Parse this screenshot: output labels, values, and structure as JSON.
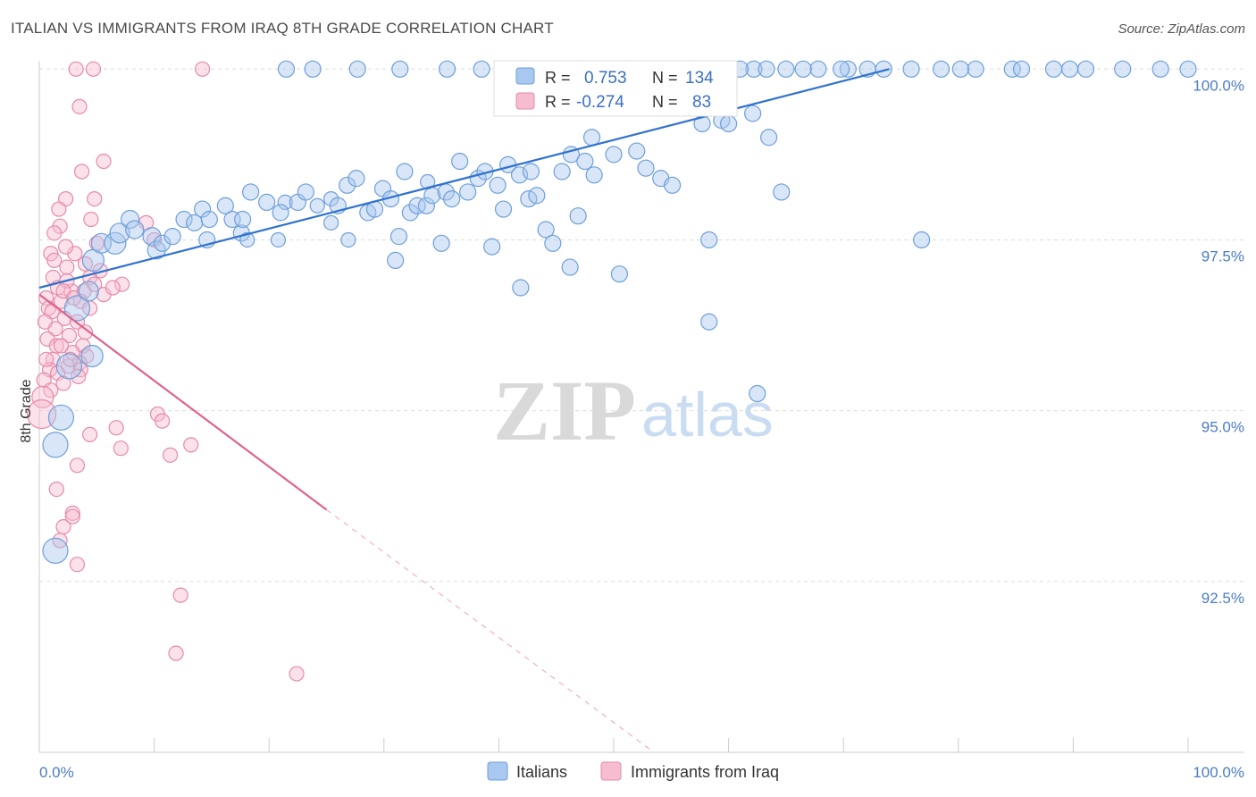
{
  "header": {
    "title": "ITALIAN VS IMMIGRANTS FROM IRAQ 8TH GRADE CORRELATION CHART",
    "source": "Source: ZipAtlas.com"
  },
  "watermark": {
    "zip": "ZIP",
    "atlas": "atlas"
  },
  "colors": {
    "blue_fill": "#a9c8ef",
    "blue_stroke": "#6f9fd9",
    "blue_line": "#2f72cf",
    "pink_fill": "#f6bcd0",
    "pink_stroke": "#e88aa8",
    "pink_line": "#e0628f",
    "grid": "#dcdcdc",
    "axis_label": "#4a7cc7"
  },
  "stats": {
    "italians": {
      "r_label": "R =",
      "r_value": "0.753",
      "n_label": "N =",
      "n_value": "134"
    },
    "iraq": {
      "r_label": "R =",
      "r_value": "-0.274",
      "n_label": "N =",
      "n_value": "83"
    }
  },
  "legend": {
    "italians": "Italians",
    "iraq": "Immigrants from Iraq"
  },
  "chart_data": {
    "type": "scatter",
    "title": "ITALIAN VS IMMIGRANTS FROM IRAQ 8TH GRADE CORRELATION CHART",
    "xlabel": "",
    "ylabel": "8th Grade",
    "xlim": [
      0,
      100
    ],
    "ylim": [
      90.0,
      100.2
    ],
    "x_tick_labels": {
      "left": "0.0%",
      "right": "100.0%"
    },
    "y_ticks": [
      {
        "value": 100.0,
        "label": "100.0%"
      },
      {
        "value": 97.5,
        "label": "97.5%"
      },
      {
        "value": 95.0,
        "label": "95.0%"
      },
      {
        "value": 92.5,
        "label": "92.5%"
      }
    ],
    "grid": true,
    "series": [
      {
        "name": "Italians",
        "r": 0.753,
        "n": 134,
        "trend": {
          "x": [
            0,
            74
          ],
          "y": [
            96.8,
            100.0
          ],
          "style": "solid"
        },
        "points": [
          [
            1.4,
            92.95,
            14
          ],
          [
            1.4,
            94.5,
            14
          ],
          [
            1.9,
            94.9,
            14
          ],
          [
            2.6,
            95.65,
            14
          ],
          [
            3.3,
            96.5,
            14
          ],
          [
            4.6,
            95.8,
            12
          ],
          [
            4.3,
            96.75,
            11
          ],
          [
            4.7,
            97.2,
            12
          ],
          [
            5.4,
            97.45,
            11
          ],
          [
            6.6,
            97.45,
            12
          ],
          [
            7.0,
            97.6,
            11
          ],
          [
            7.9,
            97.8,
            10
          ],
          [
            8.3,
            97.65,
            10
          ],
          [
            9.8,
            97.55,
            10
          ],
          [
            10.2,
            97.35,
            10
          ],
          [
            10.7,
            97.45,
            9
          ],
          [
            11.6,
            97.55,
            9
          ],
          [
            12.6,
            97.8,
            9
          ],
          [
            13.5,
            97.75,
            9
          ],
          [
            14.2,
            97.95,
            9
          ],
          [
            14.8,
            97.8,
            9
          ],
          [
            16.2,
            98.0,
            9
          ],
          [
            16.8,
            97.8,
            9
          ],
          [
            14.6,
            97.5,
            9
          ],
          [
            17.6,
            97.6,
            9
          ],
          [
            17.7,
            97.8,
            9
          ],
          [
            18.1,
            97.5,
            8
          ],
          [
            18.4,
            98.2,
            9
          ],
          [
            19.8,
            98.05,
            9
          ],
          [
            21.4,
            98.05,
            8
          ],
          [
            21.0,
            97.9,
            9
          ],
          [
            22.5,
            98.05,
            9
          ],
          [
            23.2,
            98.2,
            9
          ],
          [
            24.2,
            98.0,
            8
          ],
          [
            25.4,
            98.1,
            8
          ],
          [
            26.0,
            98.0,
            9
          ],
          [
            26.8,
            98.3,
            9
          ],
          [
            27.6,
            98.4,
            9
          ],
          [
            28.6,
            97.9,
            9
          ],
          [
            29.2,
            97.95,
            9
          ],
          [
            29.9,
            98.25,
            9
          ],
          [
            30.6,
            98.1,
            9
          ],
          [
            31.8,
            98.5,
            9
          ],
          [
            31.3,
            97.55,
            9
          ],
          [
            32.3,
            97.9,
            9
          ],
          [
            32.9,
            98.0,
            9
          ],
          [
            33.7,
            98.0,
            9
          ],
          [
            34.2,
            98.15,
            9
          ],
          [
            35.4,
            98.2,
            9
          ],
          [
            35.9,
            98.1,
            9
          ],
          [
            36.6,
            98.65,
            9
          ],
          [
            37.3,
            98.2,
            9
          ],
          [
            38.2,
            98.4,
            9
          ],
          [
            38.8,
            98.5,
            9
          ],
          [
            39.9,
            98.3,
            9
          ],
          [
            40.4,
            97.95,
            9
          ],
          [
            40.8,
            98.6,
            9
          ],
          [
            41.8,
            98.45,
            9
          ],
          [
            42.6,
            98.1,
            9
          ],
          [
            43.3,
            98.15,
            9
          ],
          [
            42.8,
            98.5,
            9
          ],
          [
            44.1,
            97.65,
            9
          ],
          [
            44.7,
            97.45,
            9
          ],
          [
            45.5,
            98.5,
            9
          ],
          [
            46.3,
            98.75,
            9
          ],
          [
            46.9,
            97.85,
            9
          ],
          [
            47.5,
            98.65,
            9
          ],
          [
            48.3,
            98.45,
            9
          ],
          [
            48.1,
            99.0,
            9
          ],
          [
            50.0,
            98.75,
            9
          ],
          [
            50.5,
            97.0,
            9
          ],
          [
            52.0,
            98.8,
            9
          ],
          [
            52.8,
            98.55,
            9
          ],
          [
            54.1,
            98.4,
            9
          ],
          [
            55.1,
            98.3,
            9
          ],
          [
            57.7,
            99.2,
            9
          ],
          [
            58.3,
            97.5,
            9
          ],
          [
            59.4,
            99.25,
            9
          ],
          [
            62.1,
            99.35,
            9
          ],
          [
            63.5,
            99.0,
            9
          ],
          [
            64.6,
            98.2,
            9
          ],
          [
            31.0,
            97.2,
            9
          ],
          [
            35.0,
            97.45,
            9
          ],
          [
            39.4,
            97.4,
            9
          ],
          [
            41.9,
            96.8,
            9
          ],
          [
            46.2,
            97.1,
            9
          ],
          [
            58.3,
            96.3,
            9
          ],
          [
            62.5,
            95.25,
            9
          ],
          [
            76.8,
            97.5,
            9
          ],
          [
            20.8,
            97.5,
            8
          ],
          [
            25.4,
            97.75,
            8
          ],
          [
            26.9,
            97.5,
            8
          ],
          [
            33.8,
            98.35,
            8
          ],
          [
            60.0,
            99.2,
            9
          ],
          [
            21.5,
            100.0,
            9
          ],
          [
            23.8,
            100.0,
            9
          ],
          [
            27.7,
            100.0,
            9
          ],
          [
            31.4,
            100.0,
            9
          ],
          [
            35.5,
            100.0,
            9
          ],
          [
            38.5,
            100.0,
            9
          ],
          [
            41.2,
            100.0,
            9
          ],
          [
            43.6,
            100.0,
            9
          ],
          [
            46.5,
            100.0,
            9
          ],
          [
            50.3,
            100.0,
            9
          ],
          [
            53.6,
            100.0,
            9
          ],
          [
            56.2,
            100.0,
            9
          ],
          [
            59.0,
            100.0,
            9
          ],
          [
            62.2,
            100.0,
            9
          ],
          [
            65.0,
            100.0,
            9
          ],
          [
            67.8,
            100.0,
            9
          ],
          [
            70.4,
            100.0,
            9
          ],
          [
            72.1,
            100.0,
            9
          ],
          [
            75.9,
            100.0,
            9
          ],
          [
            78.5,
            100.0,
            9
          ],
          [
            81.5,
            100.0,
            9
          ],
          [
            84.7,
            100.0,
            9
          ],
          [
            88.3,
            100.0,
            9
          ],
          [
            91.1,
            100.0,
            9
          ],
          [
            94.3,
            100.0,
            9
          ],
          [
            97.6,
            100.0,
            9
          ],
          [
            45.3,
            100.0,
            9
          ],
          [
            55.1,
            100.0,
            9
          ],
          [
            66.5,
            100.0,
            9
          ],
          [
            69.8,
            100.0,
            9
          ],
          [
            73.5,
            100.0,
            9
          ],
          [
            80.2,
            100.0,
            9
          ],
          [
            85.5,
            100.0,
            9
          ],
          [
            89.7,
            100.0,
            9
          ],
          [
            100.0,
            100.0,
            9
          ],
          [
            63.3,
            100.0,
            9
          ],
          [
            47.8,
            100.0,
            9
          ],
          [
            52.4,
            100.0,
            9
          ],
          [
            57.4,
            100.0,
            9
          ],
          [
            61.0,
            100.0,
            9
          ]
        ]
      },
      {
        "name": "Immigrants from Iraq",
        "r": -0.274,
        "n": 83,
        "trend": {
          "x": [
            0,
            25
          ],
          "y": [
            96.7,
            93.55
          ],
          "style": "solid",
          "extended": {
            "x": [
              25,
              53.5
            ],
            "y": [
              93.55,
              90.0
            ],
            "style": "dashed"
          }
        },
        "points": [
          [
            3.2,
            100.0,
            8
          ],
          [
            4.7,
            100.0,
            8
          ],
          [
            14.2,
            100.0,
            8
          ],
          [
            3.5,
            99.45,
            8
          ],
          [
            5.6,
            98.65,
            8
          ],
          [
            3.7,
            98.5,
            8
          ],
          [
            2.3,
            98.1,
            8
          ],
          [
            4.8,
            98.1,
            8
          ],
          [
            1.7,
            97.95,
            8
          ],
          [
            4.5,
            97.8,
            8
          ],
          [
            1.8,
            97.7,
            8
          ],
          [
            9.3,
            97.75,
            8
          ],
          [
            10.0,
            97.5,
            8
          ],
          [
            1.0,
            97.3,
            8
          ],
          [
            3.1,
            97.3,
            8
          ],
          [
            1.3,
            97.2,
            8
          ],
          [
            4.0,
            97.15,
            8
          ],
          [
            2.4,
            97.1,
            8
          ],
          [
            1.2,
            96.95,
            8
          ],
          [
            4.4,
            96.95,
            8
          ],
          [
            7.2,
            96.85,
            8
          ],
          [
            1.6,
            96.8,
            8
          ],
          [
            2.8,
            96.75,
            8
          ],
          [
            3.9,
            96.75,
            8
          ],
          [
            5.6,
            96.7,
            8
          ],
          [
            0.6,
            96.65,
            8
          ],
          [
            1.9,
            96.6,
            8
          ],
          [
            3.6,
            96.6,
            8
          ],
          [
            4.4,
            96.5,
            8
          ],
          [
            0.8,
            96.5,
            8
          ],
          [
            2.2,
            96.35,
            8
          ],
          [
            3.3,
            96.3,
            8
          ],
          [
            1.4,
            96.2,
            8
          ],
          [
            4.0,
            96.15,
            8
          ],
          [
            2.6,
            96.1,
            8
          ],
          [
            0.7,
            96.05,
            8
          ],
          [
            1.5,
            95.95,
            8
          ],
          [
            3.8,
            95.95,
            8
          ],
          [
            2.9,
            95.85,
            8
          ],
          [
            4.1,
            95.8,
            8
          ],
          [
            1.2,
            95.75,
            8
          ],
          [
            3.5,
            95.7,
            8
          ],
          [
            2.5,
            95.65,
            8
          ],
          [
            0.9,
            95.6,
            8
          ],
          [
            3.6,
            95.6,
            8
          ],
          [
            1.6,
            95.55,
            8
          ],
          [
            0.4,
            95.45,
            8
          ],
          [
            2.1,
            95.4,
            8
          ],
          [
            1.0,
            95.3,
            8
          ],
          [
            0.3,
            95.2,
            12
          ],
          [
            0.2,
            94.95,
            16
          ],
          [
            10.3,
            94.95,
            8
          ],
          [
            10.7,
            94.85,
            8
          ],
          [
            6.7,
            94.75,
            8
          ],
          [
            4.4,
            94.65,
            8
          ],
          [
            13.2,
            94.5,
            8
          ],
          [
            7.1,
            94.45,
            8
          ],
          [
            11.4,
            94.35,
            8
          ],
          [
            3.3,
            94.2,
            8
          ],
          [
            1.5,
            93.85,
            8
          ],
          [
            2.9,
            93.5,
            8
          ],
          [
            2.9,
            93.45,
            8
          ],
          [
            2.1,
            93.3,
            8
          ],
          [
            1.8,
            93.1,
            8
          ],
          [
            3.3,
            92.75,
            8
          ],
          [
            12.3,
            92.3,
            8
          ],
          [
            11.9,
            91.45,
            8
          ],
          [
            22.4,
            91.15,
            8
          ],
          [
            2.4,
            96.9,
            8
          ],
          [
            5.3,
            97.05,
            8
          ],
          [
            6.4,
            96.8,
            8
          ],
          [
            2.1,
            96.75,
            8
          ],
          [
            1.1,
            96.45,
            8
          ],
          [
            3.0,
            96.65,
            8
          ],
          [
            0.5,
            96.3,
            8
          ],
          [
            4.8,
            96.85,
            8
          ],
          [
            1.9,
            95.95,
            8
          ],
          [
            2.7,
            95.75,
            8
          ],
          [
            0.6,
            95.75,
            8
          ],
          [
            1.3,
            97.6,
            8
          ],
          [
            5.0,
            97.45,
            8
          ],
          [
            2.3,
            97.4,
            8
          ],
          [
            3.4,
            95.5,
            8
          ]
        ]
      }
    ]
  }
}
